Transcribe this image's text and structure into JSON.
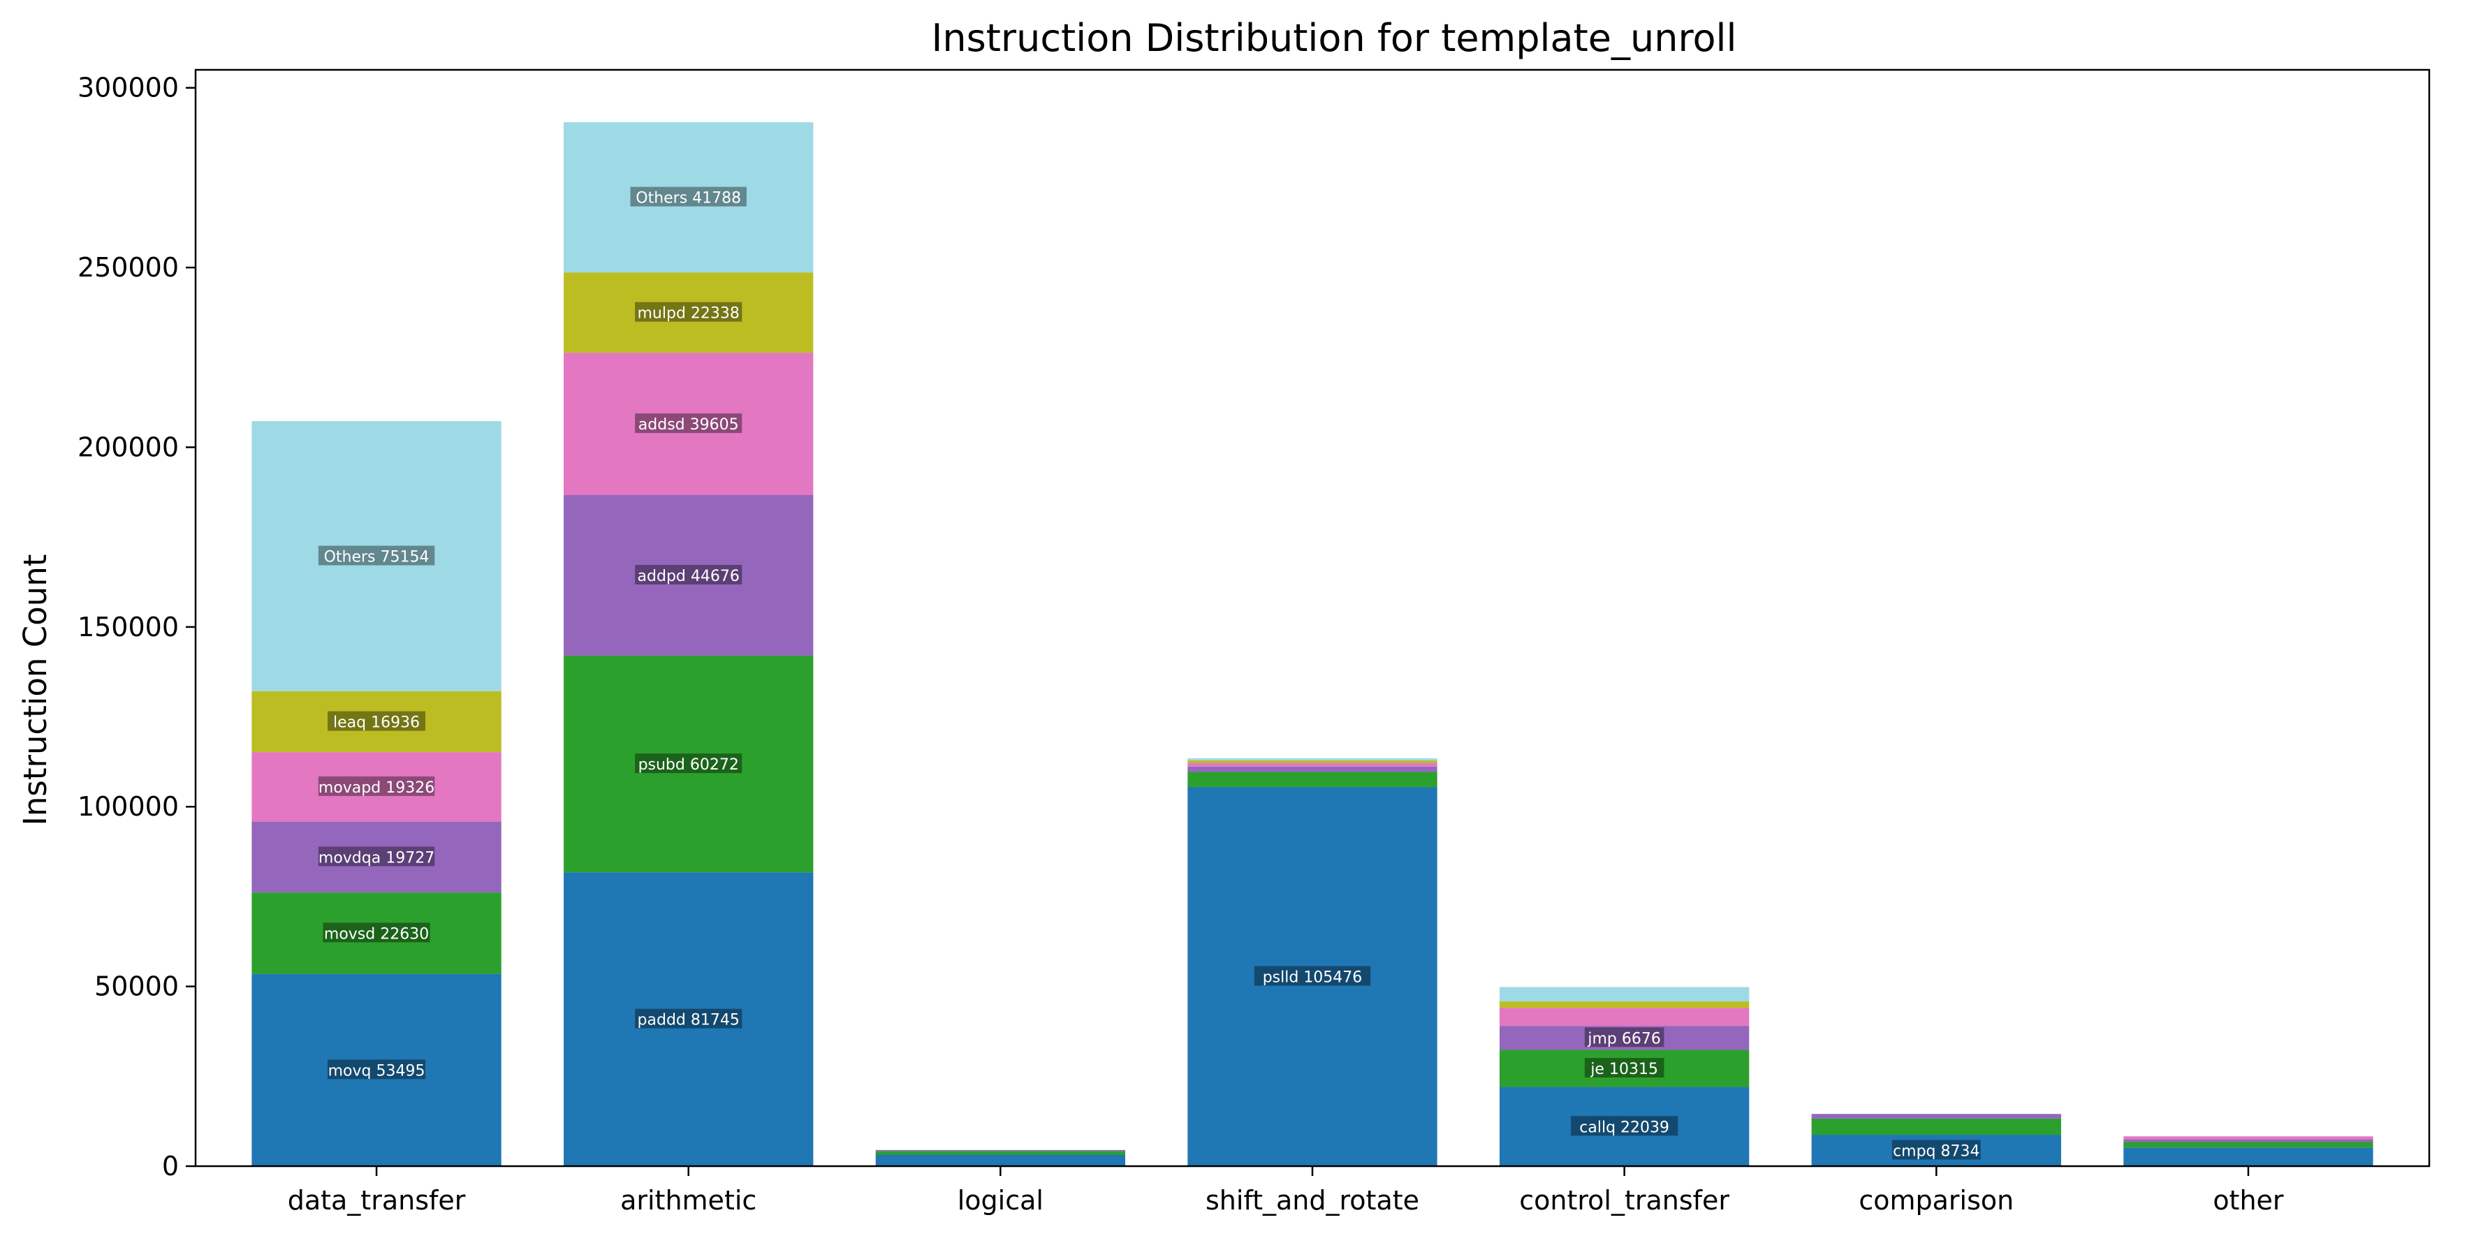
{
  "chart_data": {
    "type": "bar",
    "stacked": true,
    "title": "Instruction Distribution for template_unroll",
    "xlabel": "",
    "ylabel": "Instruction Count",
    "ylim": [
      0,
      305000
    ],
    "yticks": [
      0,
      50000,
      100000,
      150000,
      200000,
      250000,
      300000
    ],
    "categories": [
      "data_transfer",
      "arithmetic",
      "logical",
      "shift_and_rotate",
      "control_transfer",
      "comparison",
      "other"
    ],
    "colors": [
      "#1f77b4",
      "#2ca02c",
      "#9467bd",
      "#e377c2",
      "#bcbd22",
      "#9edae5"
    ],
    "stacks": [
      {
        "category": "data_transfer",
        "segments": [
          {
            "label": "movq 53495",
            "value": 53495
          },
          {
            "label": "movsd 22630",
            "value": 22630
          },
          {
            "label": "movdqa 19727",
            "value": 19727
          },
          {
            "label": "movapd 19326",
            "value": 19326
          },
          {
            "label": "leaq 16936",
            "value": 16936
          },
          {
            "label": "Others 75154",
            "value": 75154
          }
        ]
      },
      {
        "category": "arithmetic",
        "segments": [
          {
            "label": "paddd 81745",
            "value": 81745
          },
          {
            "label": "psubd 60272",
            "value": 60272
          },
          {
            "label": "addpd 44676",
            "value": 44676
          },
          {
            "label": "addsd 39605",
            "value": 39605
          },
          {
            "label": "mulpd 22338",
            "value": 22338
          },
          {
            "label": "Others 41788",
            "value": 41788
          }
        ]
      },
      {
        "category": "logical",
        "segments": [
          {
            "label": "",
            "value": 3200
          },
          {
            "label": "",
            "value": 1000
          },
          {
            "label": "",
            "value": 300
          }
        ]
      },
      {
        "category": "shift_and_rotate",
        "segments": [
          {
            "label": "pslld 105476",
            "value": 105476
          },
          {
            "label": "",
            "value": 4200
          },
          {
            "label": "",
            "value": 1500
          },
          {
            "label": "",
            "value": 1000
          },
          {
            "label": "",
            "value": 700
          },
          {
            "label": "",
            "value": 600
          }
        ]
      },
      {
        "category": "control_transfer",
        "segments": [
          {
            "label": "callq 22039",
            "value": 22039
          },
          {
            "label": "je 10315",
            "value": 10315
          },
          {
            "label": "jmp 6676",
            "value": 6676
          },
          {
            "label": "",
            "value": 5000
          },
          {
            "label": "",
            "value": 1800
          },
          {
            "label": "",
            "value": 4000
          }
        ]
      },
      {
        "category": "comparison",
        "segments": [
          {
            "label": "cmpq 8734",
            "value": 8734
          },
          {
            "label": "",
            "value": 4500
          },
          {
            "label": "",
            "value": 1300
          }
        ]
      },
      {
        "category": "other",
        "segments": [
          {
            "label": "",
            "value": 5200
          },
          {
            "label": "",
            "value": 1500
          },
          {
            "label": "",
            "value": 800
          },
          {
            "label": "",
            "value": 800
          }
        ]
      }
    ]
  }
}
